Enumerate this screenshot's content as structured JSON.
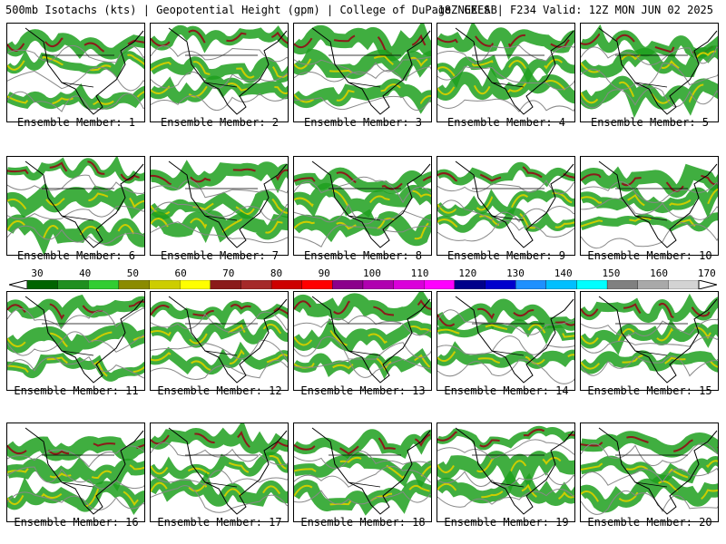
{
  "header": {
    "left_title": "500mb Isotachs (kts) | Geopotential Height (gpm) | College of DuPage NEXLAB",
    "right_title": "18Z GEFS | F234 Valid: 12Z MON JUN 02 2025"
  },
  "panels": [
    {
      "caption": "Ensemble Member: 1"
    },
    {
      "caption": "Ensemble Member: 2"
    },
    {
      "caption": "Ensemble Member: 3"
    },
    {
      "caption": "Ensemble Member: 4"
    },
    {
      "caption": "Ensemble Member: 5"
    },
    {
      "caption": "Ensemble Member: 6"
    },
    {
      "caption": "Ensemble Member: 7"
    },
    {
      "caption": "Ensemble Member: 8"
    },
    {
      "caption": "Ensemble Member: 9"
    },
    {
      "caption": "Ensemble Member: 10"
    },
    {
      "caption": "Ensemble Member: 11"
    },
    {
      "caption": "Ensemble Member: 12"
    },
    {
      "caption": "Ensemble Member: 13"
    },
    {
      "caption": "Ensemble Member: 14"
    },
    {
      "caption": "Ensemble Member: 15"
    },
    {
      "caption": "Ensemble Member: 16"
    },
    {
      "caption": "Ensemble Member: 17"
    },
    {
      "caption": "Ensemble Member: 18"
    },
    {
      "caption": "Ensemble Member: 19"
    },
    {
      "caption": "Ensemble Member: 20"
    }
  ],
  "colorbar": {
    "labels": [
      "30",
      "40",
      "50",
      "60",
      "70",
      "80",
      "90",
      "100",
      "110",
      "120",
      "130",
      "140",
      "150",
      "160",
      "170"
    ],
    "colors": [
      "#006400",
      "#1f8f1f",
      "#32cd32",
      "#8b8b00",
      "#cdcd00",
      "#ffff00",
      "#8b1a1a",
      "#a52a2a",
      "#cd0000",
      "#ff0000",
      "#8b008b",
      "#b000b0",
      "#da00da",
      "#ff00ff",
      "#00008b",
      "#0000cd",
      "#1e90ff",
      "#00bfff",
      "#00ffff",
      "#808080",
      "#a9a9a9",
      "#d3d3d3"
    ]
  }
}
